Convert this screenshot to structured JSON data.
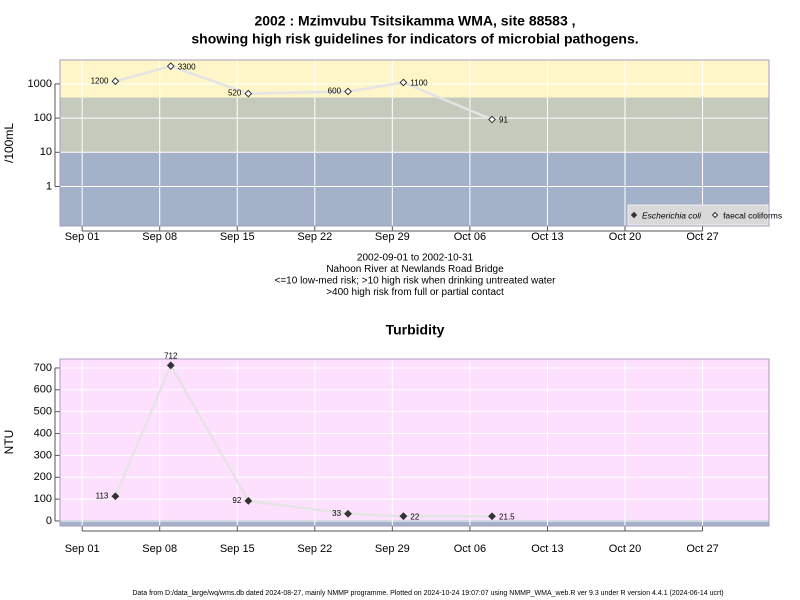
{
  "chart_data": [
    {
      "type": "line",
      "title": [
        "2002 : Mzimvubu Tsitsikamma WMA, site 88583 ,",
        "showing high risk guidelines for indicators of microbial pathogens."
      ],
      "y_label": "/100mL",
      "notes": [
        "2002-09-01 to 2002-10-31",
        "Nahoon River at Newlands Road Bridge",
        "<=10 low-med risk; >10 high risk when drinking untreated water",
        ">400 high risk from full or partial contact"
      ],
      "x": [
        "Sep 04",
        "Sep 09",
        "Sep 16",
        "Sep 25",
        "Sep 30",
        "Oct 08"
      ],
      "series": [
        {
          "name": "Escherichia coli",
          "color": "#333333",
          "marker": "filled",
          "font_style": "italic",
          "values": [
            null,
            null,
            null,
            null,
            null,
            null
          ]
        },
        {
          "name": "faecal coliforms",
          "color": "#333333",
          "marker": "hollow",
          "values": [
            1200,
            3300,
            520,
            600,
            1100,
            91
          ]
        }
      ],
      "line_color": "#e4e4e4",
      "log_scale": true,
      "xlim": [
        "Aug 30",
        "Nov 02"
      ],
      "xticks": [
        "Sep 01",
        "Sep 08",
        "Sep 15",
        "Sep 22",
        "Sep 29",
        "Oct 06",
        "Oct 13",
        "Oct 20",
        "Oct 27"
      ],
      "ylim": [
        0.07,
        5000
      ],
      "yticks": [
        1,
        10,
        100,
        1000
      ],
      "bands": [
        {
          "from": 0.07,
          "to": 10,
          "color": "#a3b2c8"
        },
        {
          "from": 10,
          "to": 400,
          "color": "#c4cbbd"
        },
        {
          "from": 400,
          "to": 5000,
          "color": "#fef6c8"
        }
      ],
      "grid": true,
      "legend": "bottom-right"
    },
    {
      "type": "line",
      "title": "Turbidity",
      "y_label": "NTU",
      "x": [
        "Sep 04",
        "Sep 09",
        "Sep 16",
        "Sep 25",
        "Sep 30",
        "Oct 08"
      ],
      "values": [
        113,
        712,
        92,
        33,
        22,
        21.5
      ],
      "color": "#333333",
      "marker": "filled",
      "line_color": "#e4e4e4",
      "log_scale": false,
      "xlim": [
        "Aug 30",
        "Nov 02"
      ],
      "xticks": [
        "Sep 01",
        "Sep 08",
        "Sep 15",
        "Sep 22",
        "Sep 29",
        "Oct 06",
        "Oct 13",
        "Oct 20",
        "Oct 27"
      ],
      "ylim": [
        -23,
        741
      ],
      "yticks": [
        0,
        100,
        200,
        300,
        400,
        500,
        600,
        700
      ],
      "bands": [
        {
          "from": -23,
          "to": 5,
          "color": "#a3b2c8"
        },
        {
          "from": 5,
          "to": 741,
          "color": "#fde0fd"
        }
      ],
      "grid": true
    }
  ],
  "footer": "Data from D:/data_large/wq/wms.db dated 2024-08-27, mainly NMMP programme. Plotted on 2024-10-24 19:07:07 using NMMP_WMA_web.R ver 9.3 under R version 4.4.1 (2024-06-14 ucrt)"
}
